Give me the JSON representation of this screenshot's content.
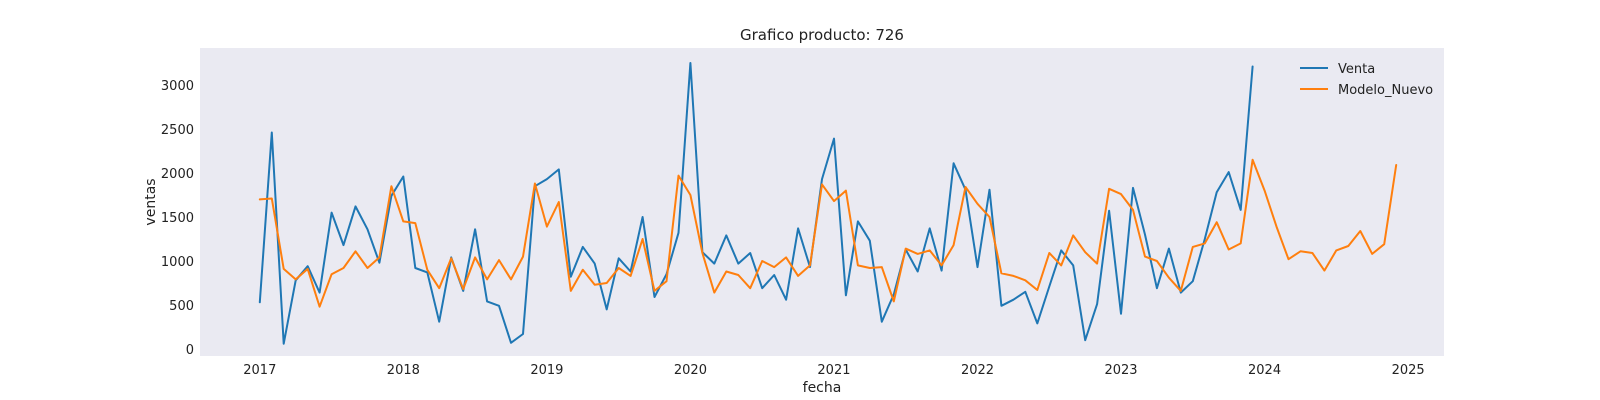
{
  "chart_data": {
    "type": "line",
    "title": "Grafico producto: 726",
    "xlabel": "fecha",
    "ylabel": "ventas",
    "xlim": [
      "2016-08-01",
      "2025-04-01"
    ],
    "ylim": [
      -80,
      3420
    ],
    "x_ticks": [
      "2017",
      "2018",
      "2019",
      "2020",
      "2021",
      "2022",
      "2023",
      "2024",
      "2025"
    ],
    "y_ticks": [
      0,
      500,
      1000,
      1500,
      2000,
      2500,
      3000
    ],
    "grid": false,
    "legend": "top-right",
    "series": [
      {
        "name": "Venta",
        "color": "#1f77b4",
        "x": [
          "2017-01",
          "2017-02",
          "2017-03",
          "2017-04",
          "2017-05",
          "2017-06",
          "2017-07",
          "2017-08",
          "2017-09",
          "2017-10",
          "2017-11",
          "2017-12",
          "2018-01",
          "2018-02",
          "2018-03",
          "2018-04",
          "2018-05",
          "2018-06",
          "2018-07",
          "2018-08",
          "2018-09",
          "2018-10",
          "2018-11",
          "2018-12",
          "2019-01",
          "2019-02",
          "2019-03",
          "2019-04",
          "2019-05",
          "2019-06",
          "2019-07",
          "2019-08",
          "2019-09",
          "2019-10",
          "2019-11",
          "2019-12",
          "2020-01",
          "2020-02",
          "2020-03",
          "2020-04",
          "2020-05",
          "2020-06",
          "2020-07",
          "2020-08",
          "2020-09",
          "2020-10",
          "2020-11",
          "2020-12",
          "2021-01",
          "2021-02",
          "2021-03",
          "2021-04",
          "2021-05",
          "2021-06",
          "2021-07",
          "2021-08",
          "2021-09",
          "2021-10",
          "2021-11",
          "2021-12",
          "2022-01",
          "2022-02",
          "2022-03",
          "2022-04",
          "2022-05",
          "2022-06",
          "2022-07",
          "2022-08",
          "2022-09",
          "2022-10",
          "2022-11",
          "2022-12",
          "2023-01",
          "2023-02",
          "2023-03",
          "2023-04",
          "2023-05",
          "2023-06",
          "2023-07",
          "2023-08",
          "2023-09",
          "2023-10",
          "2023-11",
          "2023-12"
        ],
        "values": [
          530,
          2460,
          60,
          780,
          940,
          640,
          1550,
          1180,
          1620,
          1360,
          980,
          1740,
          1960,
          920,
          870,
          310,
          1040,
          660,
          1360,
          540,
          490,
          70,
          170,
          1850,
          1930,
          2040,
          820,
          1160,
          970,
          450,
          1030,
          880,
          1500,
          590,
          850,
          1320,
          3250,
          1100,
          970,
          1290,
          970,
          1090,
          690,
          840,
          560,
          1370,
          930,
          1930,
          2390,
          610,
          1450,
          1230,
          310,
          620,
          1130,
          880,
          1370,
          890,
          2110,
          1810,
          930,
          1810,
          490,
          560,
          650,
          290,
          710,
          1120,
          950,
          100,
          510,
          1570,
          400,
          1830,
          1300,
          690,
          1140,
          640,
          770,
          1250,
          1780,
          2010,
          1580,
          3210
        ]
      },
      {
        "name": "Modelo_Nuevo",
        "color": "#ff7f0e",
        "x": [
          "2017-01",
          "2017-02",
          "2017-03",
          "2017-04",
          "2017-05",
          "2017-06",
          "2017-07",
          "2017-08",
          "2017-09",
          "2017-10",
          "2017-11",
          "2017-12",
          "2018-01",
          "2018-02",
          "2018-03",
          "2018-04",
          "2018-05",
          "2018-06",
          "2018-07",
          "2018-08",
          "2018-09",
          "2018-10",
          "2018-11",
          "2018-12",
          "2019-01",
          "2019-02",
          "2019-03",
          "2019-04",
          "2019-05",
          "2019-06",
          "2019-07",
          "2019-08",
          "2019-09",
          "2019-10",
          "2019-11",
          "2019-12",
          "2020-01",
          "2020-02",
          "2020-03",
          "2020-04",
          "2020-05",
          "2020-06",
          "2020-07",
          "2020-08",
          "2020-09",
          "2020-10",
          "2020-11",
          "2020-12",
          "2021-01",
          "2021-02",
          "2021-03",
          "2021-04",
          "2021-05",
          "2021-06",
          "2021-07",
          "2021-08",
          "2021-09",
          "2021-10",
          "2021-11",
          "2021-12",
          "2022-01",
          "2022-02",
          "2022-03",
          "2022-04",
          "2022-05",
          "2022-06",
          "2022-07",
          "2022-08",
          "2022-09",
          "2022-10",
          "2022-11",
          "2022-12",
          "2023-01",
          "2023-02",
          "2023-03",
          "2023-04",
          "2023-05",
          "2023-06",
          "2023-07",
          "2023-08",
          "2023-09",
          "2023-10",
          "2023-11",
          "2023-12",
          "2024-01",
          "2024-02",
          "2024-03",
          "2024-04",
          "2024-05",
          "2024-06",
          "2024-07",
          "2024-08",
          "2024-09",
          "2024-10",
          "2024-11",
          "2024-12"
        ],
        "values": [
          1700,
          1710,
          910,
          790,
          910,
          480,
          850,
          920,
          1110,
          920,
          1040,
          1850,
          1450,
          1430,
          900,
          690,
          1030,
          680,
          1040,
          790,
          1010,
          790,
          1050,
          1880,
          1390,
          1670,
          660,
          900,
          730,
          750,
          920,
          830,
          1250,
          660,
          770,
          1970,
          1750,
          1090,
          640,
          880,
          840,
          690,
          1000,
          930,
          1040,
          830,
          950,
          1870,
          1680,
          1800,
          950,
          920,
          930,
          540,
          1140,
          1080,
          1120,
          950,
          1180,
          1840,
          1650,
          1500,
          860,
          830,
          780,
          670,
          1090,
          950,
          1290,
          1100,
          970,
          1820,
          1760,
          1580,
          1050,
          1000,
          810,
          660,
          1160,
          1200,
          1440,
          1130,
          1200,
          2150,
          1800,
          1390,
          1020,
          1110,
          1090,
          890,
          1120,
          1170,
          1340,
          1080,
          1190,
          2090
        ]
      }
    ]
  }
}
